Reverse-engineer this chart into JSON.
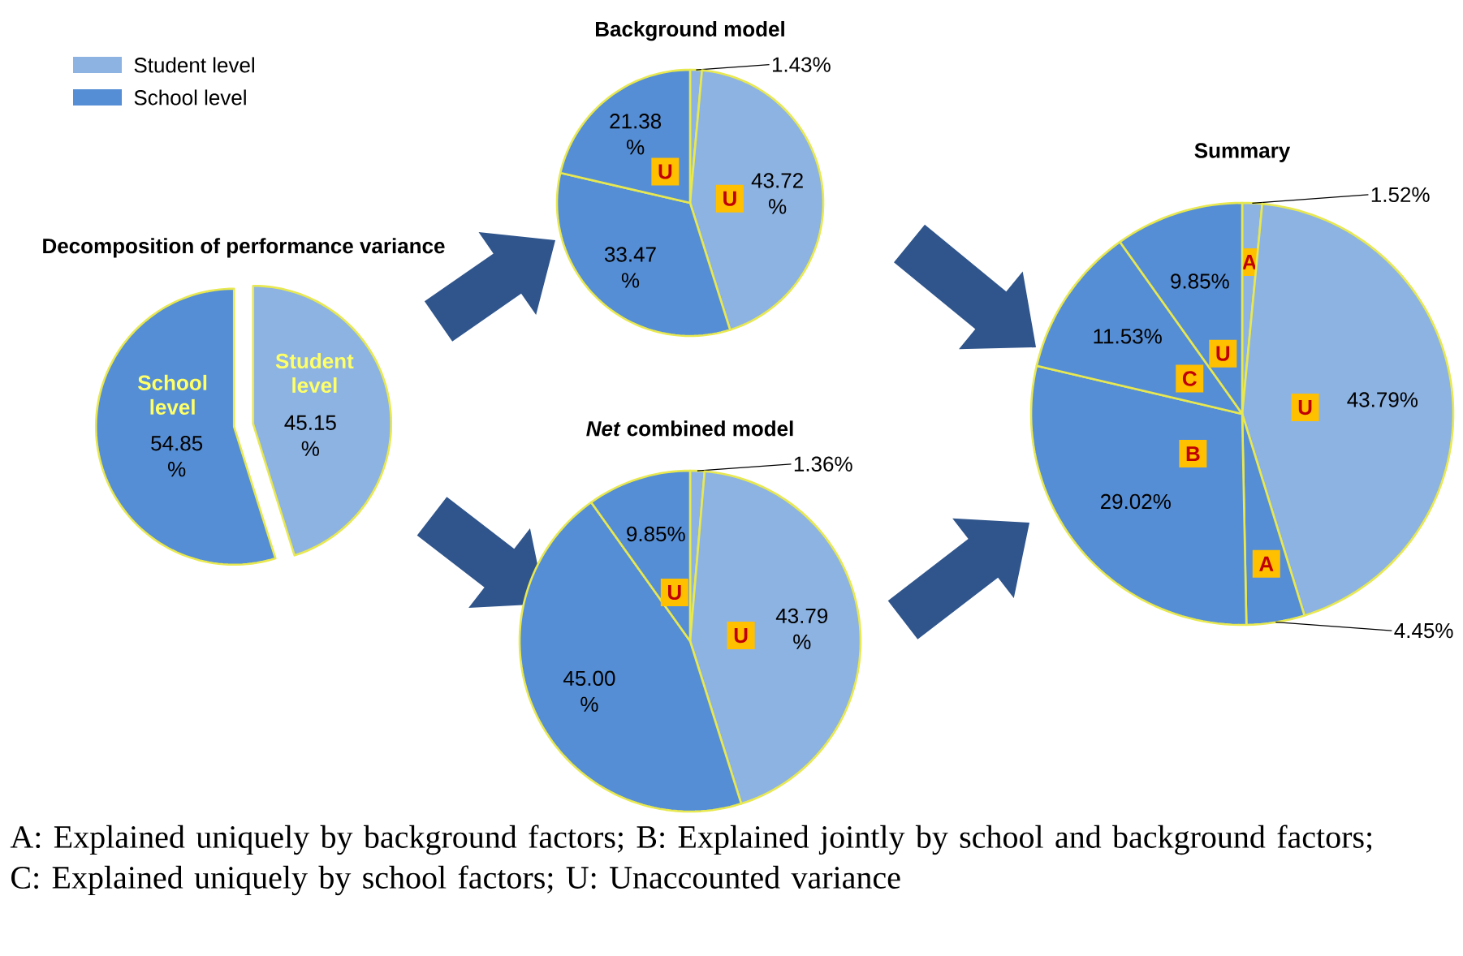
{
  "chart_data": [
    {
      "type": "pie",
      "title": "Decomposition of performance variance",
      "categories": [
        "Student level",
        "School level"
      ],
      "values": [
        45.15,
        54.85
      ],
      "colors": [
        "#8db3e2",
        "#558ed5"
      ],
      "value_labels": [
        "45.15 %",
        "54.85 %"
      ],
      "legend": "top left"
    },
    {
      "type": "pie",
      "title": "Background model",
      "categories": [
        null,
        "U",
        null,
        "U"
      ],
      "values": [
        1.43,
        43.72,
        33.47,
        21.38
      ],
      "colors": [
        "#8db3e2",
        "#8db3e2",
        "#558ed5",
        "#558ed5"
      ],
      "value_labels": [
        "1.43%",
        "43.72 %",
        "33.47 %",
        "21.38 %"
      ]
    },
    {
      "type": "pie",
      "title": "*Net* combined model",
      "categories": [
        null,
        "U",
        null,
        "U"
      ],
      "values": [
        1.36,
        43.79,
        45.0,
        9.85
      ],
      "colors": [
        "#8db3e2",
        "#8db3e2",
        "#558ed5",
        "#558ed5"
      ],
      "value_labels": [
        "1.36%",
        "43.79 %",
        "45.00 %",
        "9.85%"
      ]
    },
    {
      "type": "pie",
      "title": "Summary",
      "categories": [
        "A",
        "U",
        "A",
        "B",
        "C",
        "U"
      ],
      "values": [
        1.52,
        43.79,
        4.45,
        29.02,
        11.53,
        9.85
      ],
      "colors": [
        "#8db3e2",
        "#8db3e2",
        "#558ed5",
        "#558ed5",
        "#558ed5",
        "#558ed5"
      ],
      "value_labels": [
        "1.52%",
        "43.79%",
        "4.45%",
        "29.02%",
        "11.53%",
        "9.85%"
      ],
      "annotations": [
        "A: Explained uniquely by background factors; B: Explained jointly by school and background factors; C: Explained uniquely by school factors; U: Unaccounted variance"
      ]
    }
  ]
}
